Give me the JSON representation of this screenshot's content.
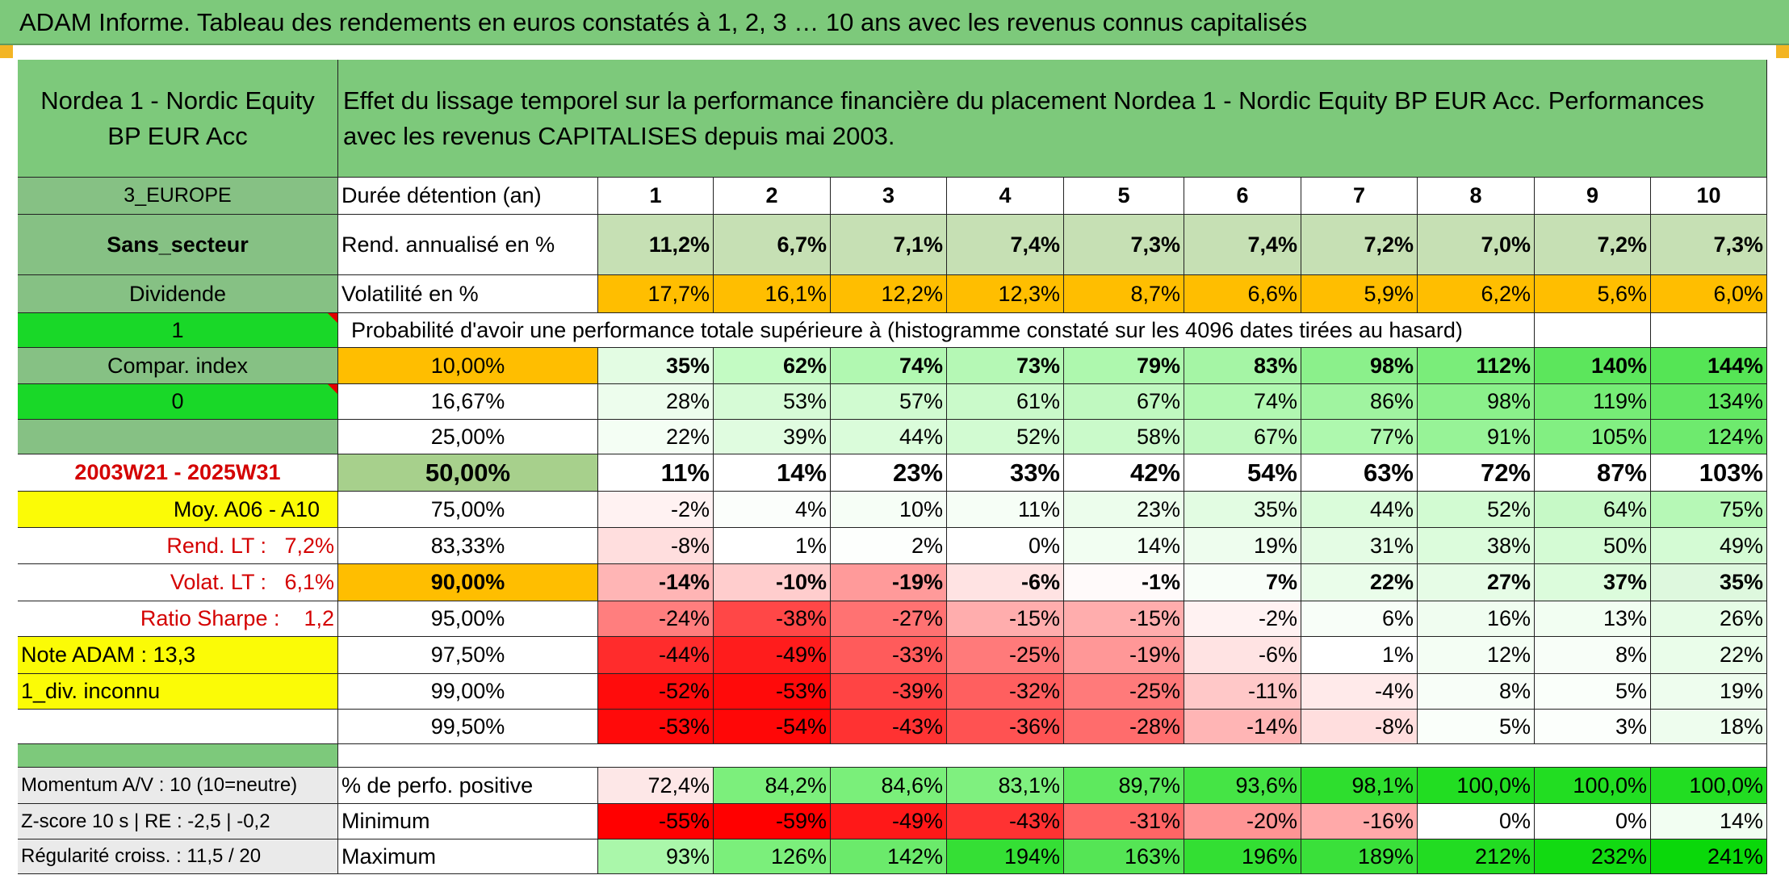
{
  "header": {
    "title": "ADAM Informe. Tableau des rendements en euros constatés à 1, 2, 3 … 10 ans avec les revenus connus capitalisés"
  },
  "fund": {
    "name": "Nordea 1 - Nordic Equity BP EUR Acc",
    "description": "Effet du lissage temporel sur la performance financière du placement Nordea 1 - Nordic Equity BP EUR Acc. Performances avec les revenus CAPITALISES depuis mai 2003."
  },
  "side": {
    "region": "3_EUROPE",
    "sector": "Sans_secteur",
    "dividend": "Dividende",
    "flag1": "1",
    "compar_index": "Compar. index",
    "flag0": "0",
    "period": "2003W21 - 2025W31",
    "moy": "Moy. A06 - A10",
    "rend_lt": "Rend. LT :   7,2%",
    "volat_lt": "Volat. LT :   6,1%",
    "sharpe": "Ratio Sharpe :    1,2",
    "note": "Note ADAM : 13,3",
    "div_inconnu": "1_div. inconnu",
    "momentum": "Momentum A/V : 10 (10=neutre)",
    "zscore": "Z-score 10 s | RE : -2,5 | -0,2",
    "regularite": "Régularité croiss. : 11,5 / 20"
  },
  "table": {
    "duration_label": "Durée détention (an)",
    "years": [
      "1",
      "2",
      "3",
      "4",
      "5",
      "6",
      "7",
      "8",
      "9",
      "10"
    ],
    "rend_label": "Rend. annualisé en %",
    "rend": [
      "11,2%",
      "6,7%",
      "7,1%",
      "7,4%",
      "7,3%",
      "7,4%",
      "7,2%",
      "7,0%",
      "7,2%",
      "7,3%"
    ],
    "vol_label": "Volatilité en %",
    "vol": [
      "17,7%",
      "16,1%",
      "12,2%",
      "12,3%",
      "8,7%",
      "6,6%",
      "5,9%",
      "6,2%",
      "5,6%",
      "6,0%"
    ],
    "prob_label": "Probabilité d'avoir une performance totale supérieure à (histogramme constaté sur les 4096 dates tirées au hasard)",
    "rows": [
      {
        "p": "10,00%",
        "v": [
          "35%",
          "62%",
          "74%",
          "73%",
          "79%",
          "83%",
          "98%",
          "112%",
          "140%",
          "144%"
        ],
        "colors": [
          "#e3fce3",
          "#c3fbc3",
          "#b1f8b1",
          "#b5f8b5",
          "#aef8ae",
          "#a5f5a5",
          "#8bf08b",
          "#7aed7a",
          "#5ce65c",
          "#55e555"
        ]
      },
      {
        "p": "16,67%",
        "v": [
          "28%",
          "53%",
          "57%",
          "61%",
          "67%",
          "74%",
          "86%",
          "98%",
          "119%",
          "134%"
        ],
        "colors": [
          "#edfded",
          "#d6fbd6",
          "#d0fbd0",
          "#cafaca",
          "#c0f9c0",
          "#b1f8b1",
          "#a0f4a0",
          "#8bf08b",
          "#76ec76",
          "#62e762"
        ]
      },
      {
        "p": "25,00%",
        "v": [
          "22%",
          "39%",
          "44%",
          "52%",
          "58%",
          "67%",
          "77%",
          "91%",
          "105%",
          "124%"
        ],
        "colors": [
          "#f4fef4",
          "#e0fce0",
          "#dafcda",
          "#d2fbd2",
          "#cafaca",
          "#c0f9c0",
          "#aef8ae",
          "#97f397",
          "#82ef82",
          "#6eea6e"
        ]
      },
      {
        "p": "50,00%",
        "v": [
          "11%",
          "14%",
          "23%",
          "33%",
          "42%",
          "54%",
          "63%",
          "72%",
          "87%",
          "103%"
        ],
        "colors": [
          "#ffffff",
          "#ffffff",
          "#ffffff",
          "#ffffff",
          "#ffffff",
          "#ffffff",
          "#ffffff",
          "#ffffff",
          "#ffffff",
          "#ffffff"
        ]
      },
      {
        "p": "75,00%",
        "v": [
          "-2%",
          "4%",
          "10%",
          "11%",
          "23%",
          "35%",
          "44%",
          "52%",
          "64%",
          "75%"
        ],
        "colors": [
          "#fff2f2",
          "#fbfefb",
          "#f6fef6",
          "#f6fef6",
          "#ecfdec",
          "#e2fce2",
          "#dafcda",
          "#d2fbd2",
          "#c6f9c6",
          "#b6f8b6"
        ]
      },
      {
        "p": "83,33%",
        "v": [
          "-8%",
          "1%",
          "2%",
          "0%",
          "14%",
          "19%",
          "31%",
          "38%",
          "50%",
          "49%"
        ],
        "colors": [
          "#ffdede",
          "#ffffff",
          "#fdfffd",
          "#ffffff",
          "#f2fef2",
          "#eefdee",
          "#e4fce4",
          "#dcfcdc",
          "#d4fbd4",
          "#d4fbd4"
        ]
      },
      {
        "p": "90,00%",
        "v": [
          "-14%",
          "-10%",
          "-19%",
          "-6%",
          "-1%",
          "7%",
          "22%",
          "27%",
          "37%",
          "35%"
        ],
        "colors": [
          "#ffb5b5",
          "#ffcdcd",
          "#ff9a9a",
          "#ffe3e3",
          "#fffafa",
          "#f8fef8",
          "#eafdea",
          "#e6fce6",
          "#dcfcdc",
          "#def8de"
        ]
      },
      {
        "p": "95,00%",
        "v": [
          "-24%",
          "-38%",
          "-27%",
          "-15%",
          "-15%",
          "-2%",
          "6%",
          "16%",
          "13%",
          "26%"
        ],
        "colors": [
          "#ff7e7e",
          "#ff4747",
          "#ff7272",
          "#ffadad",
          "#ffadad",
          "#fff2f2",
          "#f8fef8",
          "#f0fdf0",
          "#f2fef2",
          "#e6fce6"
        ]
      },
      {
        "p": "97,50%",
        "v": [
          "-44%",
          "-49%",
          "-33%",
          "-25%",
          "-19%",
          "-6%",
          "1%",
          "12%",
          "8%",
          "22%"
        ],
        "colors": [
          "#ff2c2c",
          "#ff1c1c",
          "#ff5b5b",
          "#ff7a7a",
          "#ff9797",
          "#ffe3e3",
          "#ffffff",
          "#f4fef4",
          "#f8fef8",
          "#eafdea"
        ]
      },
      {
        "p": "99,00%",
        "v": [
          "-52%",
          "-53%",
          "-39%",
          "-32%",
          "-25%",
          "-11%",
          "-4%",
          "8%",
          "5%",
          "19%"
        ],
        "colors": [
          "#ff0c0c",
          "#ff0a0a",
          "#ff4444",
          "#ff5f5f",
          "#ff7a7a",
          "#ffc8c8",
          "#ffeaea",
          "#f8fef8",
          "#fafffa",
          "#eefdee"
        ]
      },
      {
        "p": "99,50%",
        "v": [
          "-53%",
          "-54%",
          "-43%",
          "-36%",
          "-28%",
          "-14%",
          "-8%",
          "5%",
          "3%",
          "18%"
        ],
        "colors": [
          "#ff0a0a",
          "#ff0707",
          "#ff3232",
          "#ff5252",
          "#ff6c6c",
          "#ffb5b5",
          "#ffdede",
          "#fafffa",
          "#fcfffc",
          "#eefdee"
        ]
      }
    ],
    "pos_label": "% de perfo. positive",
    "pos": [
      "72,4%",
      "84,2%",
      "84,6%",
      "83,1%",
      "89,7%",
      "93,6%",
      "98,1%",
      "100,0%",
      "100,0%",
      "100,0%"
    ],
    "pos_colors": [
      "#fde7e7",
      "#7cef7c",
      "#7aef7a",
      "#7ff07f",
      "#5ee95e",
      "#45e445",
      "#2ede2e",
      "#22dd22",
      "#22dd22",
      "#22dd22"
    ],
    "min_label": "Minimum",
    "min": [
      "-55%",
      "-59%",
      "-49%",
      "-43%",
      "-31%",
      "-20%",
      "-16%",
      "0%",
      "0%",
      "14%"
    ],
    "min_colors": [
      "#ff0000",
      "#ff0000",
      "#ff1818",
      "#ff3232",
      "#ff6565",
      "#ff9494",
      "#ffa9a9",
      "#ffffff",
      "#ffffff",
      "#f2fef2"
    ],
    "max_label": "Maximum",
    "max": [
      "93%",
      "126%",
      "142%",
      "194%",
      "163%",
      "196%",
      "189%",
      "212%",
      "232%",
      "241%"
    ],
    "max_colors": [
      "#aaf7aa",
      "#7bef7b",
      "#6bea6b",
      "#35df35",
      "#55e555",
      "#33df33",
      "#3ae03a",
      "#22dc22",
      "#12da12",
      "#0ad80a"
    ]
  },
  "colors": {
    "header_green": "#7dc97b",
    "bright_green": "#19d828",
    "yellow": "#fbfb06",
    "orange": "#ffbe00",
    "label_red": "#d40000"
  }
}
